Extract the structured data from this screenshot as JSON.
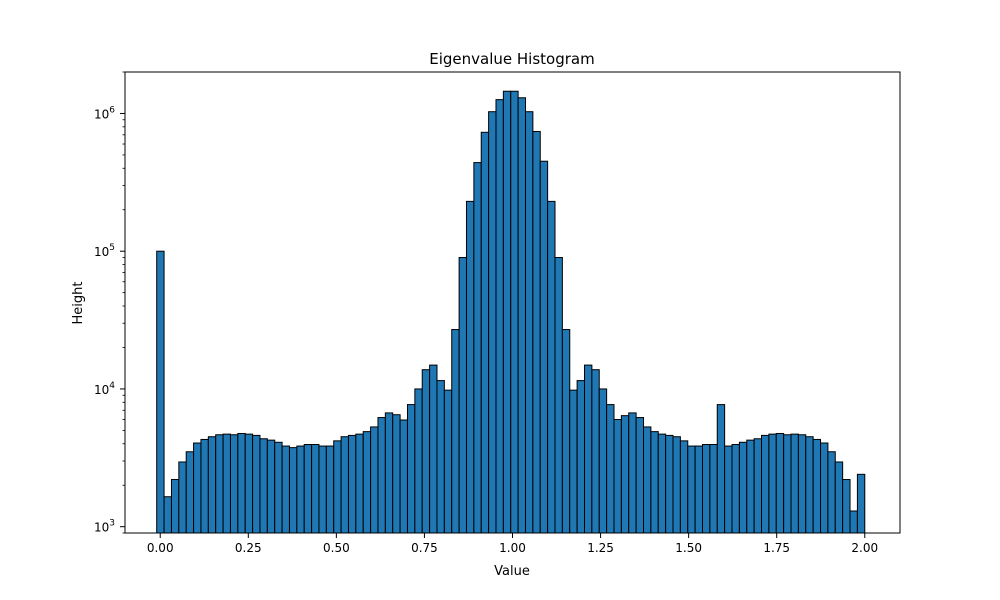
{
  "chart_data": {
    "type": "bar",
    "title": "Eigenvalue Histogram",
    "xlabel": "Value",
    "ylabel": "Height",
    "y_scale": "log",
    "xlim": [
      -0.1,
      2.1
    ],
    "ylim": [
      900,
      2000000
    ],
    "xticks": [
      0.0,
      0.25,
      0.5,
      0.75,
      1.0,
      1.25,
      1.5,
      1.75,
      2.0
    ],
    "xtick_labels": [
      "0.00",
      "0.25",
      "0.50",
      "0.75",
      "1.00",
      "1.25",
      "1.50",
      "1.75",
      "2.00"
    ],
    "yticks": [
      {
        "value": 1000,
        "base": "10",
        "exp": "3"
      },
      {
        "value": 10000,
        "base": "10",
        "exp": "4"
      },
      {
        "value": 100000,
        "base": "10",
        "exp": "5"
      },
      {
        "value": 1000000,
        "base": "10",
        "exp": "6"
      }
    ],
    "grid": false,
    "bar_color": "#1f77b4",
    "edge_color": "#000000",
    "bin_edges": [
      -0.01,
      2.0
    ],
    "values": [
      100000,
      1650,
      2200,
      2950,
      3500,
      4050,
      4300,
      4500,
      4650,
      4700,
      4650,
      4750,
      4700,
      4600,
      4350,
      4250,
      4100,
      3850,
      3750,
      3850,
      3950,
      3950,
      3850,
      3850,
      4200,
      4500,
      4600,
      4700,
      4900,
      5300,
      6200,
      6700,
      6500,
      5950,
      7700,
      10000,
      13800,
      14900,
      11500,
      9800,
      27000,
      90000,
      230000,
      440000,
      730000,
      1030000,
      1260000,
      1450000,
      1450000,
      1300000,
      1030000,
      740000,
      450000,
      230000,
      90000,
      27000,
      9800,
      11500,
      14900,
      13800,
      10000,
      7700,
      6000,
      6400,
      6700,
      6200,
      5300,
      4900,
      4700,
      4600,
      4500,
      4200,
      3850,
      3850,
      3950,
      3950,
      7700,
      3850,
      3950,
      4100,
      4250,
      4350,
      4600,
      4700,
      4750,
      4650,
      4700,
      4650,
      4500,
      4300,
      4050,
      3500,
      2950,
      2200,
      1300,
      2400
    ]
  }
}
